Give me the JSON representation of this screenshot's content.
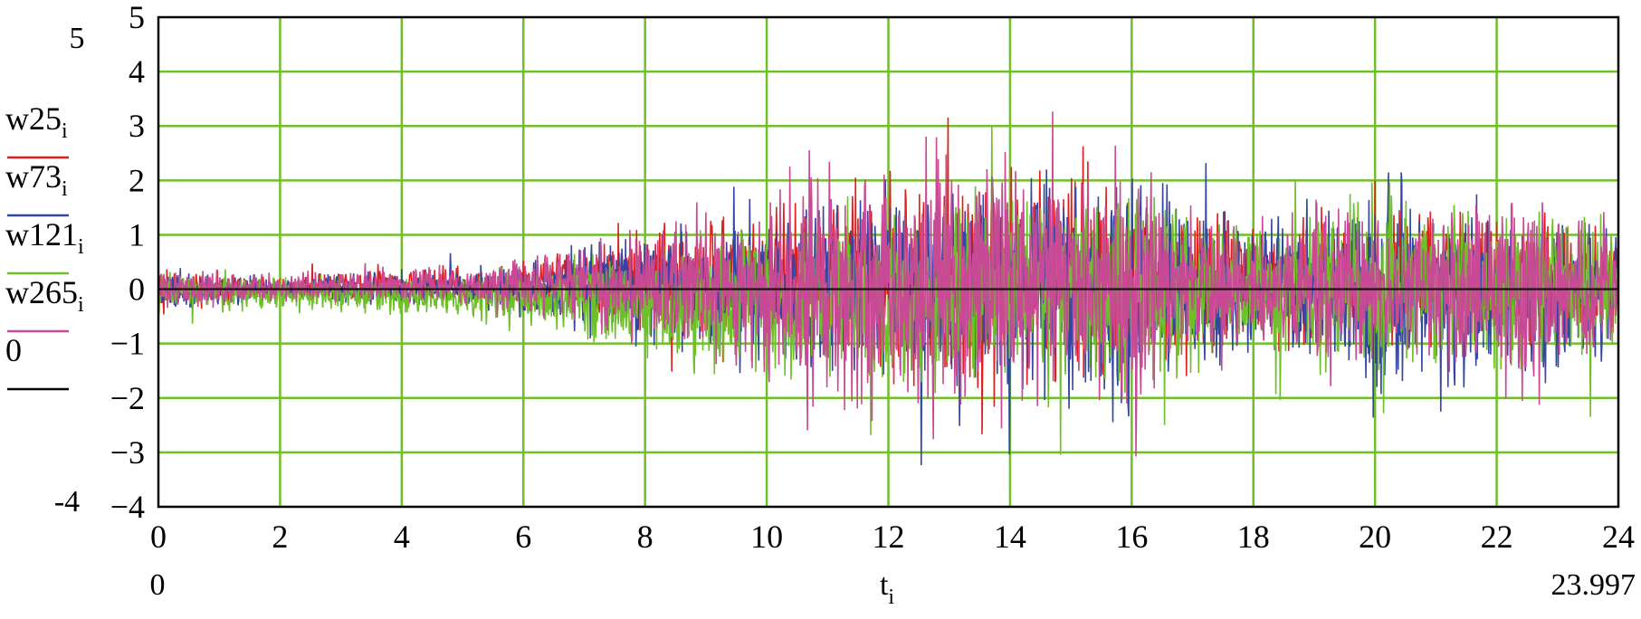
{
  "chart_data": {
    "type": "line",
    "xlim": [
      0,
      24
    ],
    "ylim": [
      -4,
      5
    ],
    "x_ticks": [
      "0",
      "2",
      "4",
      "6",
      "8",
      "10",
      "12",
      "14",
      "16",
      "18",
      "20",
      "22",
      "24"
    ],
    "y_ticks": [
      "-4",
      "-3",
      "-2",
      "-1",
      "0",
      "1",
      "2",
      "3",
      "4",
      "5"
    ],
    "x_range_labels": {
      "min": "0",
      "max": "23.997"
    },
    "y_range_labels": {
      "max": "5",
      "min": "-4"
    },
    "xlabel": {
      "base": "t",
      "sub": "i"
    },
    "grid": true,
    "grid_color": "#6fbf2a",
    "legend_position": "left",
    "series": [
      {
        "name": "w25",
        "sub": "i",
        "color": "#e0201e",
        "envelope": [
          [
            0,
            0.6
          ],
          [
            2,
            0.3
          ],
          [
            4,
            0.4
          ],
          [
            6,
            0.5
          ],
          [
            7,
            0.9
          ],
          [
            8,
            1.2
          ],
          [
            10,
            1.8
          ],
          [
            12,
            2.4
          ],
          [
            14,
            2.6
          ],
          [
            16,
            2.2
          ],
          [
            18,
            1.5
          ],
          [
            20,
            1.6
          ],
          [
            22,
            1.5
          ],
          [
            24,
            1.3
          ]
        ],
        "bias": [
          [
            0,
            0
          ],
          [
            6,
            0.1
          ],
          [
            8,
            0.2
          ],
          [
            16,
            0.2
          ],
          [
            24,
            0.1
          ]
        ],
        "seed": 25
      },
      {
        "name": "w73",
        "sub": "i",
        "color": "#3447a0",
        "envelope": [
          [
            0,
            0.5
          ],
          [
            2,
            0.3
          ],
          [
            4,
            0.4
          ],
          [
            6,
            0.6
          ],
          [
            7,
            1.2
          ],
          [
            8,
            1.4
          ],
          [
            10,
            1.8
          ],
          [
            12,
            2.5
          ],
          [
            14,
            2.6
          ],
          [
            16,
            3.2
          ],
          [
            17,
            2.2
          ],
          [
            18,
            1.5
          ],
          [
            19.5,
            2.5
          ],
          [
            20,
            3.0
          ],
          [
            22,
            2.0
          ],
          [
            24,
            1.6
          ]
        ],
        "bias": [
          [
            0,
            0
          ],
          [
            6,
            0
          ],
          [
            24,
            0
          ]
        ],
        "seed": 73
      },
      {
        "name": "w121",
        "sub": "i",
        "color": "#6fbf2a",
        "envelope": [
          [
            0,
            0.5
          ],
          [
            2,
            0.4
          ],
          [
            4,
            0.4
          ],
          [
            6,
            0.7
          ],
          [
            7,
            1.2
          ],
          [
            8,
            1.4
          ],
          [
            10,
            1.8
          ],
          [
            12,
            2.3
          ],
          [
            14,
            2.4
          ],
          [
            16,
            2.6
          ],
          [
            17,
            2.2
          ],
          [
            18,
            1.6
          ],
          [
            20,
            2.4
          ],
          [
            22,
            2.0
          ],
          [
            24,
            1.6
          ]
        ],
        "bias": [
          [
            0,
            0
          ],
          [
            6,
            -0.2
          ],
          [
            8,
            -0.3
          ],
          [
            16,
            0
          ],
          [
            24,
            0.1
          ]
        ],
        "seed": 121
      },
      {
        "name": "w265",
        "sub": "i",
        "color": "#c84a94",
        "envelope": [
          [
            0,
            0.5
          ],
          [
            2,
            0.4
          ],
          [
            4,
            0.4
          ],
          [
            6,
            0.6
          ],
          [
            7,
            1.0
          ],
          [
            8,
            1.2
          ],
          [
            10,
            2.2
          ],
          [
            11,
            3.2
          ],
          [
            12,
            3.0
          ],
          [
            13,
            3.6
          ],
          [
            14,
            3.8
          ],
          [
            15,
            2.8
          ],
          [
            16,
            3.2
          ],
          [
            17,
            2.0
          ],
          [
            18,
            1.3
          ],
          [
            19.5,
            2.6
          ],
          [
            20,
            1.6
          ],
          [
            22,
            2.2
          ],
          [
            22.4,
            3.0
          ],
          [
            24,
            1.2
          ]
        ],
        "bias": [
          [
            0,
            0
          ],
          [
            6,
            0.1
          ],
          [
            24,
            0
          ]
        ],
        "seed": 265
      },
      {
        "name": "0",
        "sub": "",
        "color": "#000000",
        "constant": 0
      }
    ],
    "samples": 2400
  }
}
